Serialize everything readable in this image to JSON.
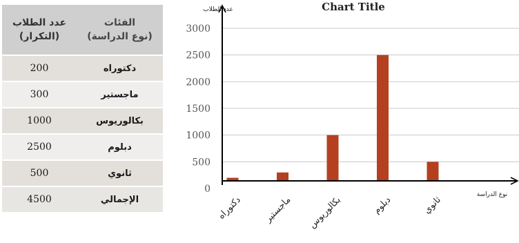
{
  "table": {
    "header": {
      "category_line1": "الفئات",
      "category_line2": "(نوع الدراسة)",
      "value_line1": "عدد الطلاب",
      "value_line2": "(التكرار)"
    },
    "rows": [
      {
        "category": "دكتوراه",
        "value": "200"
      },
      {
        "category": "ماجستير",
        "value": "300"
      },
      {
        "category": "بكالوريوس",
        "value": "1000"
      },
      {
        "category": "دبلوم",
        "value": "2500"
      },
      {
        "category": "ثانوي",
        "value": "500"
      },
      {
        "category": "الإجمالي",
        "value": "4500"
      }
    ]
  },
  "chart_data": {
    "type": "bar",
    "title": "Chart Title",
    "categories": [
      "دكتوراه",
      "ماجستير",
      "بكالوريوس",
      "دبلوم",
      "ثانوي"
    ],
    "values": [
      200,
      300,
      1000,
      2500,
      500
    ],
    "ylabel": "عدد الطلاب",
    "xlabel": "نوع الدراسة",
    "ylim": [
      0,
      3000
    ],
    "yticks": [
      "3000",
      "2500",
      "2000",
      "1500",
      "1000",
      "500",
      "0"
    ],
    "grid": true,
    "legend": false,
    "bar_color": "#b5401f",
    "grid_color": "#c8c8c8"
  }
}
